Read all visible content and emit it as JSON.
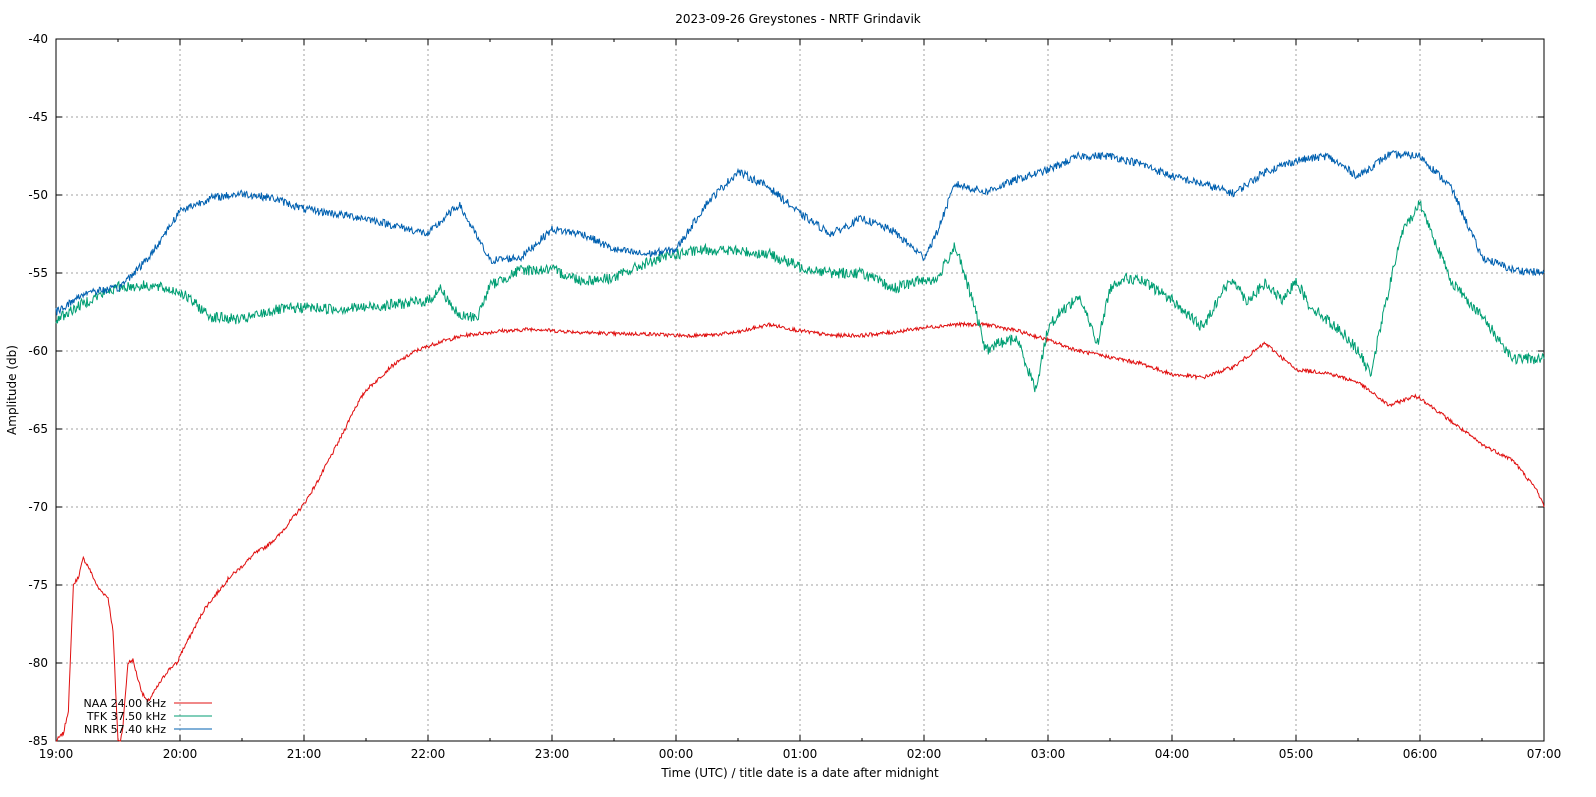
{
  "chart_data": {
    "type": "line",
    "title": "2023-09-26 Greystones - NRTF Grindavik",
    "xlabel": "Time (UTC) / title date is a date after midnight",
    "ylabel": "Amplitude (db)",
    "xlim": [
      0,
      12
    ],
    "ylim": [
      -85,
      -40
    ],
    "x_ticks": [
      "19:00",
      "20:00",
      "21:00",
      "22:00",
      "23:00",
      "00:00",
      "01:00",
      "02:00",
      "03:00",
      "04:00",
      "05:00",
      "06:00",
      "07:00"
    ],
    "y_ticks": [
      "-40",
      "-45",
      "-50",
      "-55",
      "-60",
      "-65",
      "-70",
      "-75",
      "-80",
      "-85"
    ],
    "grid": true,
    "legend_position": "bottom-left",
    "series": [
      {
        "name": "NAA 24.00 kHz",
        "color": "#e01010",
        "x": [
          0,
          0.06,
          0.1,
          0.14,
          0.18,
          0.22,
          0.26,
          0.3,
          0.34,
          0.38,
          0.42,
          0.46,
          0.5,
          0.52,
          0.54,
          0.58,
          0.62,
          0.66,
          0.7,
          0.74,
          0.78,
          0.82,
          0.86,
          0.9,
          0.94,
          0.98,
          1.0,
          1.1,
          1.2,
          1.3,
          1.4,
          1.5,
          1.6,
          1.7,
          1.8,
          1.9,
          2.0,
          2.1,
          2.2,
          2.3,
          2.4,
          2.5,
          2.6,
          2.7,
          2.8,
          2.9,
          3.0,
          3.1,
          3.2,
          3.3,
          3.4,
          3.5,
          3.6,
          3.7,
          3.8,
          3.9,
          4.0,
          4.25,
          4.5,
          4.75,
          5.0,
          5.25,
          5.5,
          5.75,
          6.0,
          6.25,
          6.5,
          6.75,
          7.0,
          7.25,
          7.5,
          7.75,
          8.0,
          8.25,
          8.5,
          8.75,
          9.0,
          9.25,
          9.5,
          9.75,
          10.0,
          10.25,
          10.5,
          10.75,
          10.85,
          10.95,
          11.0,
          11.25,
          11.5,
          11.75,
          11.85,
          11.95,
          12.0
        ],
        "y": [
          -85,
          -84.5,
          -83,
          -75,
          -74.5,
          -73.3,
          -73.8,
          -74.5,
          -75.2,
          -75.5,
          -75.8,
          -78,
          -85,
          -85,
          -84,
          -80,
          -79.8,
          -81,
          -82,
          -82.5,
          -82,
          -81.5,
          -81,
          -80.5,
          -80.2,
          -80,
          -79.5,
          -78,
          -76.5,
          -75.5,
          -74.5,
          -73.8,
          -73,
          -72.5,
          -71.8,
          -70.8,
          -69.8,
          -68.5,
          -67,
          -65.5,
          -63.8,
          -62.5,
          -61.8,
          -61,
          -60.5,
          -60,
          -59.7,
          -59.4,
          -59.2,
          -59,
          -58.9,
          -58.8,
          -58.7,
          -58.7,
          -58.6,
          -58.6,
          -58.7,
          -58.8,
          -58.9,
          -58.9,
          -59,
          -59,
          -58.8,
          -58.3,
          -58.7,
          -59,
          -59,
          -58.8,
          -58.5,
          -58.3,
          -58.3,
          -58.7,
          -59.3,
          -60,
          -60.4,
          -60.8,
          -61.5,
          -61.7,
          -61.0,
          -59.5,
          -61.2,
          -61.4,
          -62,
          -63.5,
          -63.2,
          -62.9,
          -63.0,
          -64.5,
          -66,
          -67,
          -68,
          -69,
          -70
        ]
      },
      {
        "name": "TFK 37.50 kHz",
        "color": "#009e73",
        "x": [
          0,
          0.25,
          0.5,
          0.75,
          1.0,
          1.25,
          1.5,
          1.75,
          2.0,
          2.25,
          2.5,
          2.75,
          3.0,
          3.1,
          3.25,
          3.4,
          3.5,
          3.75,
          4.0,
          4.25,
          4.5,
          4.75,
          5.0,
          5.25,
          5.5,
          5.75,
          6.0,
          6.25,
          6.5,
          6.75,
          7.0,
          7.1,
          7.25,
          7.4,
          7.5,
          7.6,
          7.75,
          7.9,
          8.0,
          8.1,
          8.25,
          8.4,
          8.5,
          8.6,
          8.75,
          8.9,
          9.0,
          9.1,
          9.25,
          9.4,
          9.5,
          9.6,
          9.75,
          9.9,
          10.0,
          10.1,
          10.25,
          10.4,
          10.5,
          10.6,
          10.75,
          10.85,
          11.0,
          11.25,
          11.5,
          11.75,
          12.0
        ],
        "y": [
          -58,
          -56.8,
          -55.9,
          -55.8,
          -56.2,
          -57.8,
          -58,
          -57.4,
          -57.2,
          -57.3,
          -57.2,
          -57,
          -56.8,
          -56,
          -57.8,
          -57.8,
          -55.8,
          -54.8,
          -54.8,
          -55.5,
          -55.3,
          -54.4,
          -53.8,
          -53.5,
          -53.6,
          -53.8,
          -54.6,
          -55,
          -55,
          -56,
          -55.4,
          -55.5,
          -53.2,
          -57,
          -60,
          -59.5,
          -59.2,
          -62.5,
          -58.5,
          -57.5,
          -56.5,
          -59.5,
          -56,
          -55.3,
          -55.5,
          -56.2,
          -56.7,
          -57.5,
          -58.5,
          -56.2,
          -55.4,
          -56.8,
          -55.7,
          -56.8,
          -55.4,
          -57,
          -58,
          -59,
          -60,
          -61.5,
          -56,
          -52.5,
          -50.5,
          -55.5,
          -57.8,
          -60.5,
          -60.5
        ]
      },
      {
        "name": "NRK 57.40 kHz",
        "color": "#0060b0",
        "x": [
          0,
          0.25,
          0.5,
          0.75,
          1.0,
          1.25,
          1.5,
          1.75,
          2.0,
          2.25,
          2.5,
          2.75,
          3.0,
          3.25,
          3.5,
          3.75,
          4.0,
          4.25,
          4.5,
          4.75,
          5.0,
          5.25,
          5.5,
          5.75,
          6.0,
          6.25,
          6.5,
          6.75,
          7.0,
          7.1,
          7.25,
          7.5,
          7.75,
          8.0,
          8.25,
          8.5,
          8.75,
          9.0,
          9.25,
          9.5,
          9.75,
          10.0,
          10.25,
          10.5,
          10.75,
          11.0,
          11.25,
          11.5,
          11.75,
          12.0
        ],
        "y": [
          -57.5,
          -56.2,
          -56,
          -54,
          -51,
          -50.2,
          -49.9,
          -50.2,
          -50.9,
          -51.2,
          -51.5,
          -52,
          -52.5,
          -50.6,
          -54.2,
          -54,
          -52.2,
          -52.5,
          -53.5,
          -53.8,
          -53.5,
          -50.5,
          -48.5,
          -49.5,
          -51.2,
          -52.5,
          -51.5,
          -52.3,
          -54,
          -52.5,
          -49.3,
          -49.8,
          -49,
          -48.4,
          -47.5,
          -47.5,
          -48,
          -48.8,
          -49.3,
          -49.9,
          -48.5,
          -47.8,
          -47.5,
          -48.8,
          -47.4,
          -47.5,
          -49.5,
          -54,
          -54.8,
          -55
        ]
      }
    ]
  }
}
